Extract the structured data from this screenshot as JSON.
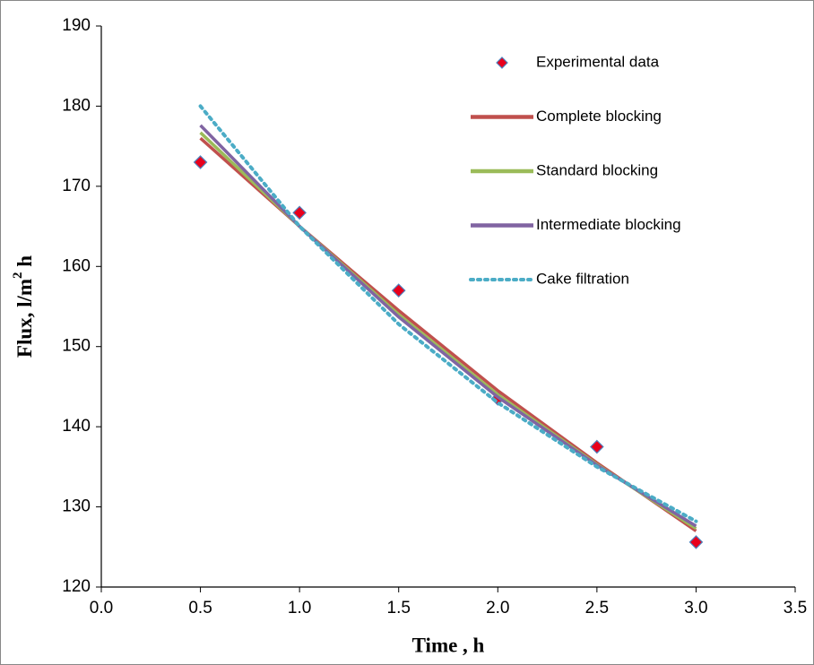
{
  "chart_data": {
    "type": "line",
    "x_label": "Time , h",
    "y_label": {
      "text": "Flux,  l/m",
      "superscript": "2",
      "after": " h"
    },
    "xlim": [
      0,
      3.5
    ],
    "xticks": [
      {
        "value": 0,
        "label": "0.0"
      },
      0.5,
      {
        "value": 1,
        "label": "1.0"
      },
      1.5,
      {
        "value": 2,
        "label": "2.0"
      },
      2.5,
      {
        "value": 3,
        "label": "3.0"
      },
      3.5
    ],
    "ylim": [
      120,
      190
    ],
    "yticks": [
      120,
      130,
      140,
      150,
      160,
      170,
      180,
      190
    ],
    "legend": "upper-right",
    "series": [
      {
        "name": "Experimental data",
        "style": "markers",
        "color": "#e8001c",
        "edge_color": "#4f81bd",
        "x": [
          0.5,
          1.0,
          1.5,
          2.0,
          2.5,
          3.0
        ],
        "values": [
          173,
          166.7,
          157,
          143.5,
          137.5,
          125.6
        ]
      },
      {
        "name": "Complete blocking",
        "style": "solid",
        "color": "#c0504d",
        "x": [
          0.5,
          1.0,
          1.5,
          2.0,
          2.5,
          3.0
        ],
        "values": [
          176,
          165,
          154.5,
          144.5,
          135.5,
          127
        ]
      },
      {
        "name": "Standard blocking",
        "style": "solid",
        "color": "#9bbb59",
        "x": [
          0.5,
          1.0,
          1.5,
          2.0,
          2.5,
          3.0
        ],
        "values": [
          176.7,
          165,
          154,
          144,
          135.3,
          127.3
        ]
      },
      {
        "name": "Intermediate blocking",
        "style": "solid",
        "color": "#8064a2",
        "x": [
          0.5,
          1.0,
          1.5,
          2.0,
          2.5,
          3.0
        ],
        "values": [
          177.6,
          165,
          153.7,
          143.7,
          135.2,
          127.6
        ]
      },
      {
        "name": "Cake filtration",
        "style": "dotted",
        "color": "#4bacc6",
        "x": [
          0.5,
          1.0,
          1.5,
          2.0,
          2.5,
          3.0
        ],
        "values": [
          180,
          165,
          152.8,
          143,
          135,
          128.2
        ]
      }
    ]
  }
}
